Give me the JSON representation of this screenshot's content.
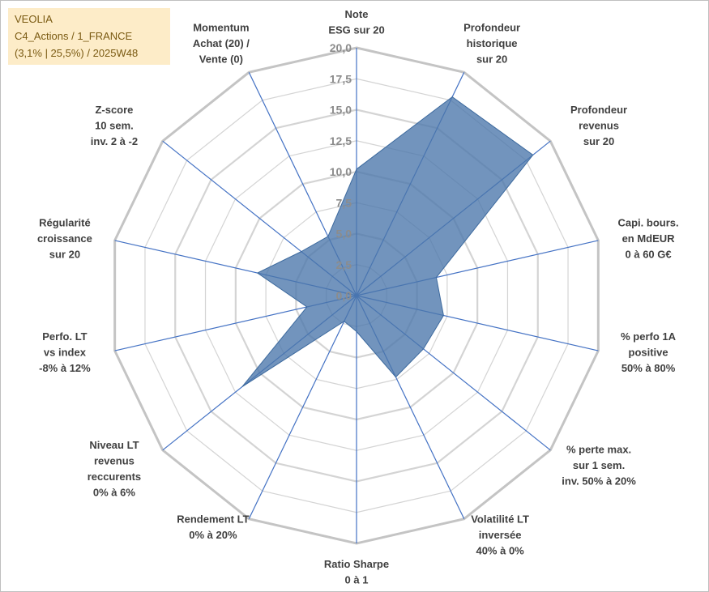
{
  "title_box": {
    "line1": "VEOLIA",
    "line2": "C4_Actions / 1_FRANCE",
    "line3": "(3,1% | 25,5%) / 2025W48"
  },
  "colors": {
    "grid": "#bfbfbf",
    "spoke": "#4472c4",
    "fill": "#4a76ab",
    "title_bg": "#fdecc8",
    "title_text": "#7a5a12"
  },
  "chart_data": {
    "type": "radar",
    "title": "VEOLIA",
    "range": [
      0,
      20
    ],
    "tick_step": 2.5,
    "tick_labels": [
      "0,0",
      "2,5",
      "5,0",
      "7,5",
      "10,0",
      "12,5",
      "15,0",
      "17,5",
      "20,0"
    ],
    "axes": [
      {
        "label": [
          "Note",
          "ESG sur 20"
        ]
      },
      {
        "label": [
          "Profondeur",
          "historique",
          "sur 20"
        ]
      },
      {
        "label": [
          "Profondeur",
          "revenus",
          "sur 20"
        ]
      },
      {
        "label": [
          "Capi. bours.",
          "en MdEUR",
          "0 à 60 G€"
        ]
      },
      {
        "label": [
          "% perfo 1A",
          "positive",
          "50% à 80%"
        ]
      },
      {
        "label": [
          "% perte max.",
          "sur 1 sem.",
          "inv. 50% à 20%"
        ]
      },
      {
        "label": [
          "Volatilité LT",
          "inversée",
          "40% à 0%"
        ]
      },
      {
        "label": [
          "Ratio Sharpe",
          "0 à 1"
        ]
      },
      {
        "label": [
          "Rendement LT",
          "0% à 20%"
        ]
      },
      {
        "label": [
          "Niveau LT",
          "revenus",
          "reccurents",
          "0% à 6%"
        ]
      },
      {
        "label": [
          "Perfo. LT",
          "vs index",
          "-8% à 12%"
        ]
      },
      {
        "label": [
          "Régularité",
          "croissance",
          "sur 20"
        ]
      },
      {
        "label": [
          "Z-score",
          "10 sem.",
          "inv. 2 à -2"
        ]
      },
      {
        "label": [
          "Momentum",
          "Achat (20) /",
          "Vente (0)"
        ]
      }
    ],
    "series": [
      {
        "name": "VEOLIA",
        "values": [
          10.2,
          17.8,
          18.2,
          6.6,
          7.2,
          6.9,
          7.3,
          2.9,
          2.3,
          11.8,
          4.1,
          8.2,
          5.7,
          5.3
        ]
      }
    ]
  }
}
